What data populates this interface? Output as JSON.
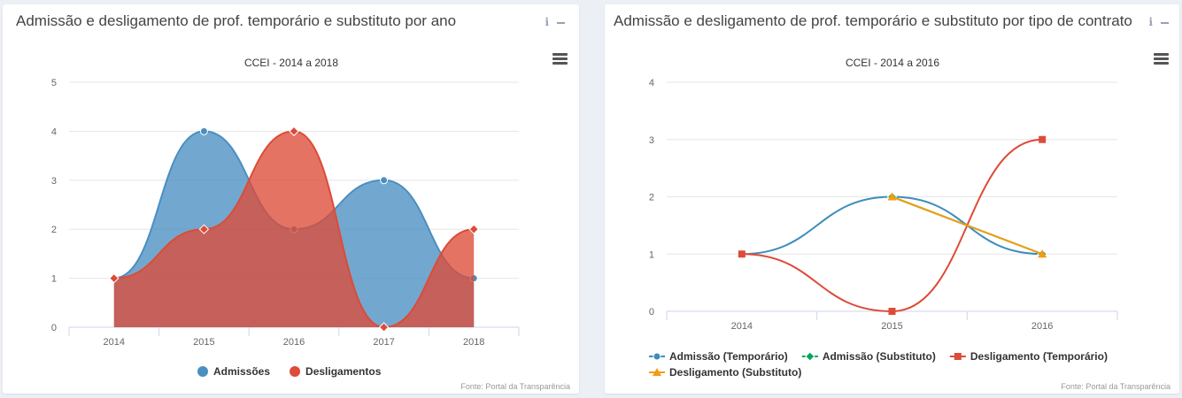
{
  "panels": [
    {
      "title": "Admissão e desligamento de prof. temporário e substituto por ano",
      "info_glyph": "i",
      "source": "Fonte: Portal da Transparência",
      "chart_data": {
        "type": "area",
        "subtitle": "CCEI - 2014 a 2018",
        "categories": [
          "2014",
          "2015",
          "2016",
          "2017",
          "2018"
        ],
        "ylim": [
          0,
          5
        ],
        "yticks": [
          "0",
          "1",
          "2",
          "3",
          "4",
          "5"
        ],
        "grid": true,
        "legend": "bottom-center",
        "series": [
          {
            "name": "Admissões",
            "values": [
              1,
              4,
              2,
              3,
              1
            ],
            "color": "#4a8fc1",
            "marker": "circle"
          },
          {
            "name": "Desligamentos",
            "values": [
              1,
              2,
              4,
              0,
              2
            ],
            "color": "#dd4b39",
            "marker": "diamond"
          }
        ]
      }
    },
    {
      "title": "Admissão e desligamento de prof. temporário e substituto por tipo de contrato",
      "info_glyph": "i",
      "source": "Fonte: Portal da Transparência",
      "chart_data": {
        "type": "line",
        "subtitle": "CCEI - 2014 a 2016",
        "categories": [
          "2014",
          "2015",
          "2016"
        ],
        "ylim": [
          0,
          4
        ],
        "yticks": [
          "0",
          "1",
          "2",
          "3",
          "4"
        ],
        "grid": true,
        "legend": "bottom-left",
        "series": [
          {
            "name": "Admissão (Temporário)",
            "values": [
              1,
              2,
              1
            ],
            "color": "#3c8dbc",
            "marker": "circle"
          },
          {
            "name": "Admissão (Substituto)",
            "values": [
              null,
              2,
              1
            ],
            "color": "#00a65a",
            "marker": "diamond"
          },
          {
            "name": "Desligamento (Temporário)",
            "values": [
              1,
              0,
              3
            ],
            "color": "#dd4b39",
            "marker": "square"
          },
          {
            "name": "Desligamento (Substituto)",
            "values": [
              null,
              2,
              1
            ],
            "color": "#f39c12",
            "marker": "triangle"
          }
        ]
      }
    }
  ]
}
